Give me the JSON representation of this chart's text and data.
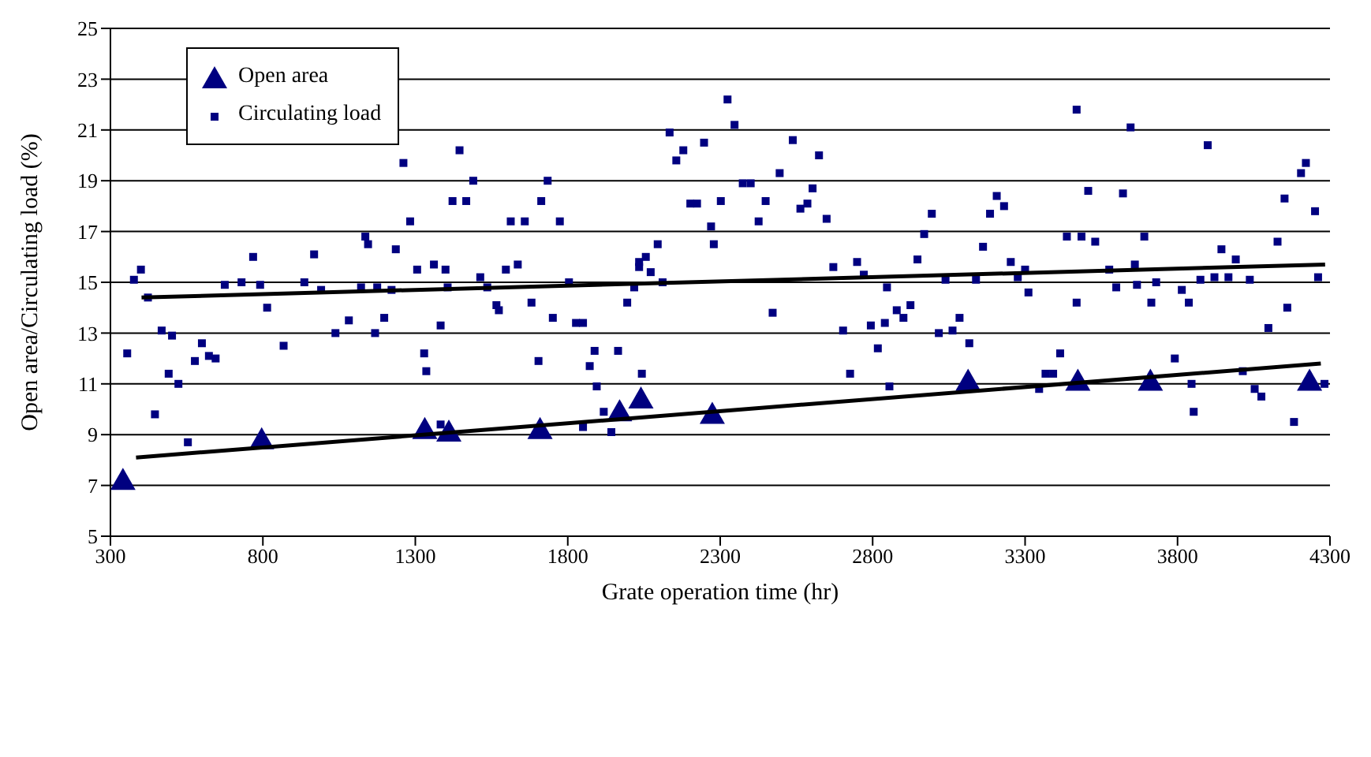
{
  "chart_data": {
    "type": "scatter",
    "xlabel": "Grate operation time (hr)",
    "ylabel": "Open area/Circulating load (%)",
    "xlim": [
      300,
      4300
    ],
    "xticks": [
      300,
      800,
      1300,
      1800,
      2300,
      2800,
      3300,
      3800,
      4300
    ],
    "ylim": [
      5,
      25
    ],
    "yticks": [
      5,
      7,
      9,
      11,
      13,
      15,
      17,
      19,
      21,
      23,
      25
    ],
    "grid": "y",
    "legend": "top left",
    "series": [
      {
        "name": "Open area",
        "type": "scatter",
        "marker": "triangle",
        "color": "#000080",
        "x": [
          341,
          796,
          1331,
          1410,
          1709,
          1970,
          2040,
          2274,
          3113,
          3473,
          3711,
          4233
        ],
        "values": [
          7.2,
          8.8,
          9.2,
          9.1,
          9.2,
          9.9,
          10.4,
          9.8,
          11.1,
          11.1,
          11.1,
          11.1
        ]
      },
      {
        "name": "Circulating load",
        "type": "scatter",
        "marker": "square",
        "color": "#000080",
        "x": [
          355,
          377,
          400,
          423,
          446,
          468,
          491,
          502,
          523,
          554,
          577,
          600,
          623,
          645,
          675,
          730,
          768,
          791,
          814,
          868,
          936,
          968,
          991,
          1038,
          1082,
          1122,
          1136,
          1145,
          1168,
          1175,
          1198,
          1222,
          1236,
          1261,
          1283,
          1306,
          1329,
          1336,
          1361,
          1383,
          1383,
          1399,
          1406,
          1422,
          1445,
          1467,
          1490,
          1513,
          1536,
          1566,
          1574,
          1597,
          1613,
          1636,
          1659,
          1681,
          1704,
          1713,
          1734,
          1751,
          1774,
          1804,
          1827,
          1850,
          1850,
          1872,
          1888,
          1895,
          1918,
          1943,
          1965,
          1995,
          2018,
          2034,
          2034,
          2043,
          2056,
          2072,
          2095,
          2111,
          2134,
          2156,
          2179,
          2202,
          2224,
          2247,
          2270,
          2279,
          2302,
          2324,
          2347,
          2374,
          2400,
          2426,
          2449,
          2472,
          2495,
          2538,
          2563,
          2586,
          2603,
          2624,
          2649,
          2671,
          2703,
          2726,
          2749,
          2771,
          2794,
          2817,
          2840,
          2847,
          2855,
          2879,
          2901,
          2924,
          2947,
          2969,
          2994,
          3017,
          3039,
          3062,
          3085,
          3117,
          3139,
          3162,
          3185,
          3207,
          3231,
          3253,
          3276,
          3300,
          3311,
          3346,
          3367,
          3392,
          3415,
          3437,
          3469,
          3469,
          3485,
          3507,
          3530,
          3576,
          3599,
          3621,
          3646,
          3660,
          3667,
          3691,
          3714,
          3730,
          3791,
          3814,
          3837,
          3846,
          3853,
          3875,
          3899,
          3921,
          3944,
          3967,
          3991,
          4014,
          4037,
          4053,
          4075,
          4098,
          4128,
          4151,
          4160,
          4182,
          4205,
          4221,
          4251,
          4261,
          4282
        ],
        "values": [
          12.2,
          15.1,
          15.5,
          14.4,
          9.8,
          13.1,
          11.4,
          12.9,
          11.0,
          8.7,
          11.9,
          12.6,
          12.1,
          12.0,
          14.9,
          15.0,
          16.0,
          14.9,
          14.0,
          12.5,
          15.0,
          16.1,
          14.7,
          13.0,
          13.5,
          14.8,
          16.8,
          16.5,
          13.0,
          14.8,
          13.6,
          14.7,
          16.3,
          19.7,
          17.4,
          15.5,
          12.2,
          11.5,
          15.7,
          13.3,
          9.4,
          15.5,
          14.8,
          18.2,
          20.2,
          18.2,
          19.0,
          15.2,
          14.8,
          14.1,
          13.9,
          15.5,
          17.4,
          15.7,
          17.4,
          14.2,
          11.9,
          18.2,
          19.0,
          13.6,
          17.4,
          15.0,
          13.4,
          13.4,
          9.3,
          11.7,
          12.3,
          10.9,
          9.9,
          9.1,
          12.3,
          14.2,
          14.8,
          15.8,
          15.6,
          11.4,
          16.0,
          15.4,
          16.5,
          15.0,
          20.9,
          19.8,
          20.2,
          18.1,
          18.1,
          20.5,
          17.2,
          16.5,
          18.2,
          22.2,
          21.2,
          18.9,
          18.9,
          17.4,
          18.2,
          13.8,
          19.3,
          20.6,
          17.9,
          18.1,
          18.7,
          20.0,
          17.5,
          15.6,
          13.1,
          11.4,
          15.8,
          15.3,
          13.3,
          12.4,
          13.4,
          14.8,
          10.9,
          13.9,
          13.6,
          14.1,
          15.9,
          16.9,
          17.7,
          13.0,
          15.1,
          13.1,
          13.6,
          12.6,
          15.1,
          16.4,
          17.7,
          18.4,
          18.0,
          15.8,
          15.2,
          15.5,
          14.6,
          10.8,
          11.4,
          11.4,
          12.2,
          16.8,
          21.8,
          14.2,
          16.8,
          18.6,
          16.6,
          15.5,
          14.8,
          18.5,
          21.1,
          15.7,
          14.9,
          16.8,
          14.2,
          15.0,
          12.0,
          14.7,
          14.2,
          11.0,
          9.9,
          15.1,
          20.4,
          15.2,
          16.3,
          15.2,
          15.9,
          11.5,
          15.1,
          10.8,
          10.5,
          13.2,
          16.6,
          18.3,
          14.0,
          9.5,
          19.3,
          19.7,
          17.8,
          15.2,
          11.0
        ]
      },
      {
        "type": "line",
        "marker": "none",
        "line_style": "solid",
        "color": "#000000",
        "x": [
          384,
          4270
        ],
        "values": [
          8.1,
          11.8
        ]
      },
      {
        "type": "line",
        "marker": "none",
        "line_style": "solid",
        "color": "#000000",
        "x": [
          402,
          4284
        ],
        "values": [
          14.4,
          15.7
        ]
      }
    ]
  }
}
